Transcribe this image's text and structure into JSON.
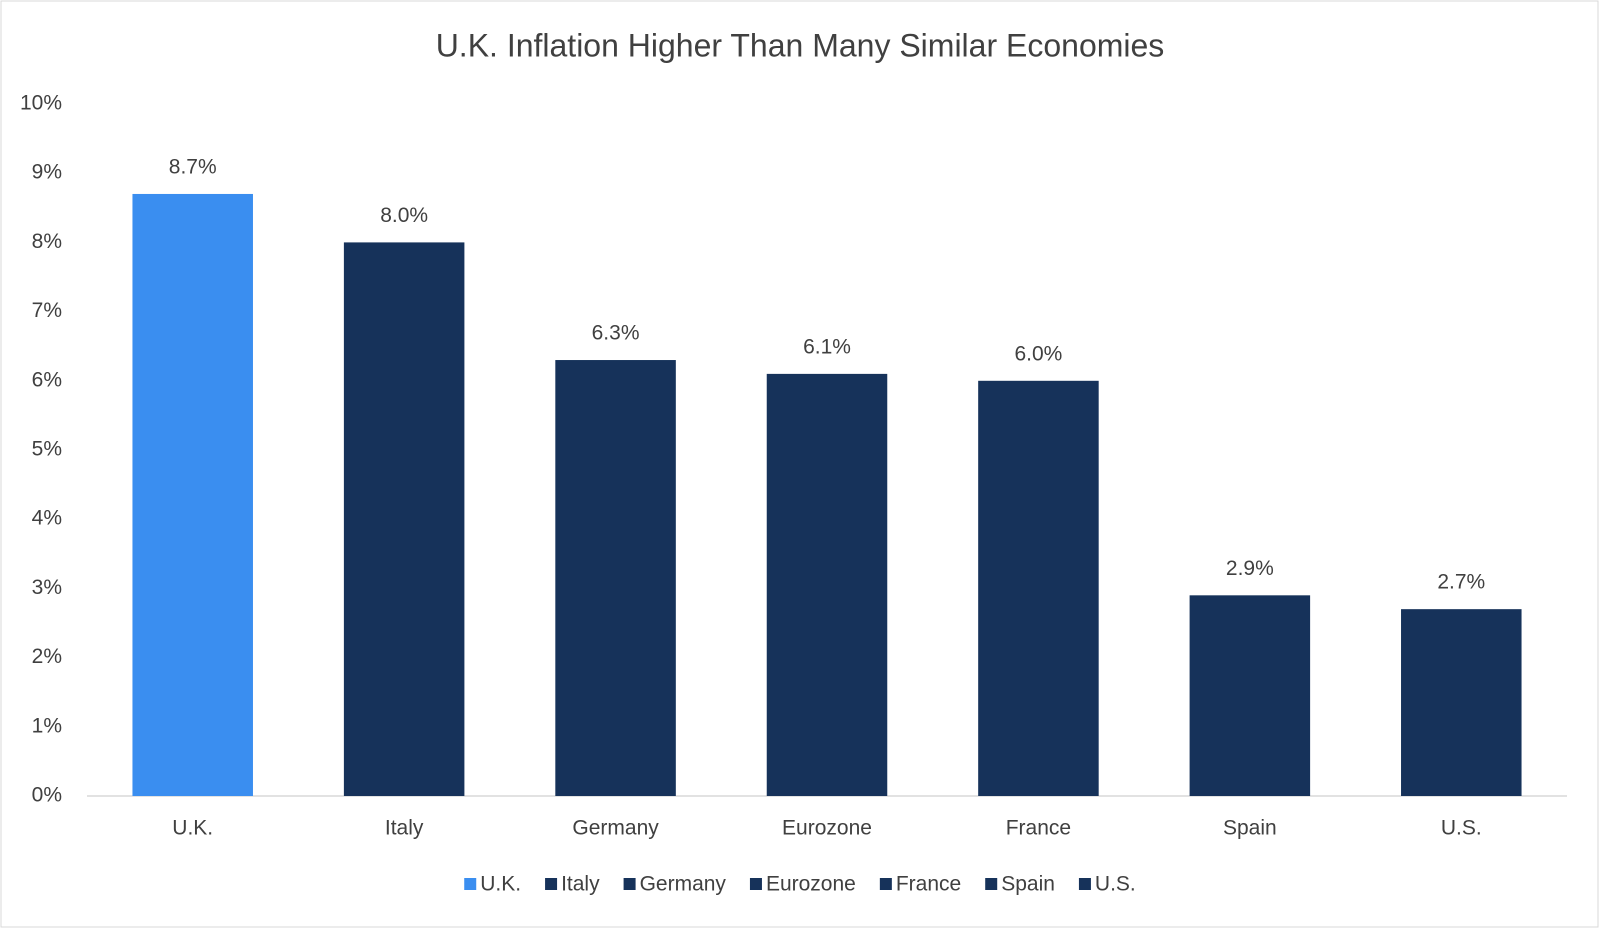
{
  "chart_data": {
    "type": "bar",
    "title": "U.K. Inflation Higher Than Many Similar Economies",
    "categories": [
      "U.K.",
      "Italy",
      "Germany",
      "Eurozone",
      "France",
      "Spain",
      "U.S."
    ],
    "values": [
      8.7,
      8.0,
      6.3,
      6.1,
      6.0,
      2.9,
      2.7
    ],
    "value_labels": [
      "8.7%",
      "8.0%",
      "6.3%",
      "6.1%",
      "6.0%",
      "2.9%",
      "2.7%"
    ],
    "colors": [
      "#3a8ef0",
      "#16325a",
      "#16325a",
      "#16325a",
      "#16325a",
      "#16325a",
      "#16325a"
    ],
    "ylim": [
      0,
      10
    ],
    "yticks": [
      {
        "value": 0,
        "label": "0%"
      },
      {
        "value": 1,
        "label": "1%"
      },
      {
        "value": 2,
        "label": "2%"
      },
      {
        "value": 3,
        "label": "3%"
      },
      {
        "value": 4,
        "label": "4%"
      },
      {
        "value": 5,
        "label": "5%"
      },
      {
        "value": 6,
        "label": "6%"
      },
      {
        "value": 7,
        "label": "7%"
      },
      {
        "value": 8,
        "label": "8%"
      },
      {
        "value": 9,
        "label": "9%"
      },
      {
        "value": 10,
        "label": "10%"
      }
    ],
    "grid": false,
    "legend": "bottom"
  }
}
